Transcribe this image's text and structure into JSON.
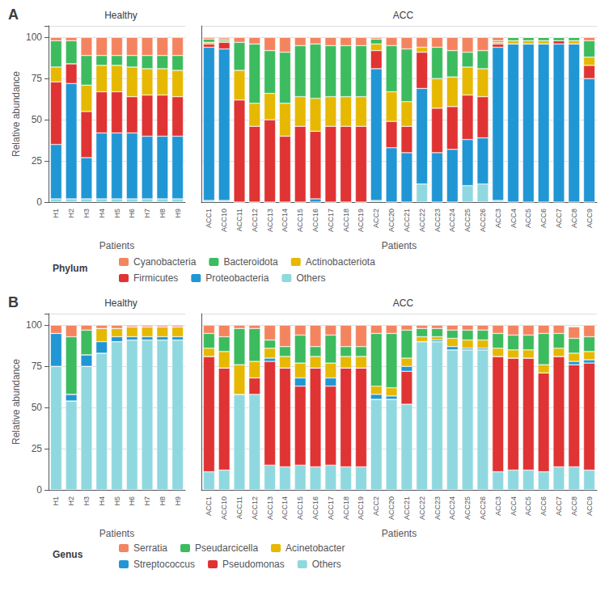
{
  "chart_data": [
    {
      "type": "bar",
      "title": "Healthy",
      "x_label": "Patients",
      "y_label": "Relative abundance",
      "annotations": [
        "A"
      ],
      "legend": "bottom",
      "legend_title": "Phylum",
      "categories": [
        "H1",
        "H2",
        "H3",
        "H4",
        "H5",
        "H6",
        "H7",
        "H8",
        "H9"
      ],
      "series": [
        {
          "name": "Others",
          "color": "#90D8E0",
          "values": [
            2,
            2,
            2,
            2,
            2,
            2,
            2,
            2,
            2
          ]
        },
        {
          "name": "Proteobacteria",
          "color": "#2196D4",
          "values": [
            33,
            70,
            25,
            40,
            40,
            40,
            38,
            38,
            38
          ]
        },
        {
          "name": "Firmicutes",
          "color": "#E03333",
          "values": [
            38,
            12,
            28,
            25,
            25,
            22,
            25,
            25,
            24
          ]
        },
        {
          "name": "Actinobacteriota",
          "color": "#E6B800",
          "values": [
            9,
            0,
            16,
            16,
            16,
            18,
            16,
            16,
            16
          ]
        },
        {
          "name": "Bacteroidota",
          "color": "#3DBB5F",
          "values": [
            16,
            14,
            18,
            6,
            6,
            7,
            8,
            8,
            9
          ]
        },
        {
          "name": "Cyanobacteria",
          "color": "#F4845F",
          "values": [
            2,
            2,
            11,
            11,
            11,
            11,
            11,
            11,
            11
          ]
        }
      ],
      "ylim": [
        0,
        107
      ],
      "yticks": [
        0,
        25,
        50,
        75,
        100
      ],
      "grid": true,
      "stacked": true
    },
    {
      "type": "bar",
      "title": "ACC",
      "x_label": "Patients",
      "tick_labels": "x",
      "categories": [
        "ACC1",
        "ACC10",
        "ACC11",
        "ACC12",
        "ACC13",
        "ACC14",
        "ACC15",
        "ACC16",
        "ACC17",
        "ACC18",
        "ACC19",
        "ACC2",
        "ACC20",
        "ACC21",
        "ACC22",
        "ACC23",
        "ACC24",
        "ACC25",
        "ACC26",
        "ACC3",
        "ACC4",
        "ACC5",
        "ACC6",
        "ACC7",
        "ACC8",
        "ACC9"
      ],
      "series": [
        {
          "name": "Others",
          "color": "#90D8E0",
          "values": [
            1,
            1,
            0,
            0,
            0,
            0,
            0,
            0,
            0,
            0,
            0,
            1,
            0,
            0,
            11,
            0,
            0,
            10,
            11,
            1,
            0,
            0,
            0,
            0,
            0,
            0
          ]
        },
        {
          "name": "Proteobacteria",
          "color": "#2196D4",
          "values": [
            93,
            92,
            0,
            0,
            0,
            0,
            0,
            2,
            0,
            0,
            0,
            80,
            33,
            30,
            58,
            30,
            32,
            28,
            28,
            93,
            96,
            96,
            96,
            96,
            96,
            75
          ]
        },
        {
          "name": "Firmicutes",
          "color": "#E03333",
          "values": [
            2,
            4,
            62,
            46,
            50,
            40,
            46,
            41,
            46,
            46,
            46,
            11,
            16,
            16,
            22,
            27,
            26,
            27,
            25,
            2,
            0,
            0,
            0,
            2,
            0,
            8
          ]
        },
        {
          "name": "Actinobacteriota",
          "color": "#E6B800",
          "values": [
            1,
            1,
            18,
            14,
            16,
            20,
            18,
            20,
            18,
            18,
            18,
            4,
            18,
            15,
            3,
            18,
            18,
            17,
            17,
            1,
            2,
            2,
            2,
            0,
            2,
            5
          ]
        },
        {
          "name": "Bacteroidota",
          "color": "#3DBB5F",
          "values": [
            2,
            1,
            17,
            36,
            26,
            31,
            31,
            33,
            31,
            31,
            31,
            3,
            28,
            32,
            0,
            19,
            16,
            9,
            11,
            1,
            2,
            2,
            2,
            2,
            2,
            10
          ]
        },
        {
          "name": "Cyanobacteria",
          "color": "#F4845F",
          "values": [
            1,
            1,
            3,
            4,
            8,
            9,
            5,
            4,
            5,
            5,
            5,
            1,
            5,
            7,
            6,
            6,
            8,
            9,
            8,
            2,
            0,
            0,
            0,
            0,
            0,
            2
          ]
        }
      ],
      "ylim": [
        0,
        107
      ],
      "yticks": [
        0,
        25,
        50,
        75,
        100
      ],
      "grid": true,
      "stacked": true
    },
    {
      "type": "bar",
      "title": "Healthy",
      "x_label": "Patients",
      "y_label": "Relative abundance",
      "annotations": [
        "B"
      ],
      "legend": "bottom",
      "legend_title": "Genus",
      "categories": [
        "H1",
        "H2",
        "H3",
        "H4",
        "H5",
        "H6",
        "H7",
        "H8",
        "H9"
      ],
      "series": [
        {
          "name": "Others",
          "color": "#90D8E0",
          "values": [
            75,
            54,
            75,
            83,
            90,
            91,
            91,
            91,
            91
          ]
        },
        {
          "name": "Pseudomonas",
          "color": "#E03333",
          "values": [
            0,
            0,
            0,
            0,
            0,
            0,
            0,
            0,
            0
          ]
        },
        {
          "name": "Streptococcus",
          "color": "#2196D4",
          "values": [
            20,
            4,
            7,
            7,
            3,
            2,
            2,
            2,
            2
          ]
        },
        {
          "name": "Acinetobacter",
          "color": "#E6B800",
          "values": [
            0,
            0,
            0,
            8,
            5,
            6,
            6,
            6,
            6
          ]
        },
        {
          "name": "Pseudarcicella",
          "color": "#3DBB5F",
          "values": [
            0,
            35,
            15,
            0,
            0,
            0,
            0,
            0,
            0
          ]
        },
        {
          "name": "Serratia",
          "color": "#F4845F",
          "values": [
            5,
            7,
            3,
            2,
            2,
            1,
            1,
            1,
            1
          ]
        }
      ],
      "ylim": [
        0,
        107
      ],
      "yticks": [
        0,
        25,
        50,
        75,
        100
      ],
      "grid": true,
      "stacked": true
    },
    {
      "type": "bar",
      "title": "ACC",
      "x_label": "Patients",
      "tick_labels": "x",
      "categories": [
        "ACC1",
        "ACC10",
        "ACC11",
        "ACC12",
        "ACC13",
        "ACC14",
        "ACC15",
        "ACC16",
        "ACC17",
        "ACC18",
        "ACC19",
        "ACC2",
        "ACC20",
        "ACC21",
        "ACC22",
        "ACC23",
        "ACC24",
        "ACC25",
        "ACC26",
        "ACC3",
        "ACC4",
        "ACC5",
        "ACC6",
        "ACC7",
        "ACC8",
        "ACC9"
      ],
      "series": [
        {
          "name": "Others",
          "color": "#90D8E0",
          "values": [
            11,
            12,
            58,
            58,
            15,
            14,
            15,
            14,
            15,
            14,
            14,
            55,
            55,
            52,
            90,
            90,
            85,
            85,
            85,
            11,
            12,
            12,
            11,
            14,
            14,
            12
          ]
        },
        {
          "name": "Pseudomonas",
          "color": "#E03333",
          "values": [
            70,
            62,
            0,
            10,
            63,
            60,
            48,
            60,
            48,
            60,
            60,
            0,
            0,
            20,
            0,
            0,
            0,
            0,
            0,
            70,
            68,
            68,
            60,
            67,
            62,
            65
          ]
        },
        {
          "name": "Streptococcus",
          "color": "#2196D4",
          "values": [
            0,
            0,
            0,
            0,
            2,
            0,
            5,
            0,
            5,
            0,
            0,
            3,
            2,
            3,
            0,
            1,
            2,
            1,
            1,
            0,
            0,
            0,
            0,
            0,
            2,
            2
          ]
        },
        {
          "name": "Acinetobacter",
          "color": "#E6B800",
          "values": [
            5,
            10,
            18,
            10,
            6,
            7,
            9,
            7,
            9,
            7,
            7,
            5,
            5,
            5,
            3,
            2,
            5,
            5,
            5,
            5,
            5,
            5,
            5,
            5,
            5,
            5
          ]
        },
        {
          "name": "Pseudarcicella",
          "color": "#3DBB5F",
          "values": [
            9,
            9,
            22,
            20,
            5,
            6,
            17,
            6,
            17,
            6,
            6,
            32,
            33,
            17,
            5,
            5,
            5,
            6,
            6,
            9,
            9,
            9,
            19,
            9,
            9,
            9
          ]
        },
        {
          "name": "Serratia",
          "color": "#F4845F",
          "values": [
            5,
            7,
            2,
            2,
            9,
            13,
            6,
            13,
            6,
            13,
            13,
            5,
            5,
            3,
            2,
            2,
            3,
            3,
            3,
            5,
            6,
            6,
            5,
            5,
            7,
            7
          ]
        }
      ],
      "ylim": [
        0,
        107
      ],
      "yticks": [
        0,
        25,
        50,
        75,
        100
      ],
      "grid": true,
      "stacked": true
    }
  ]
}
